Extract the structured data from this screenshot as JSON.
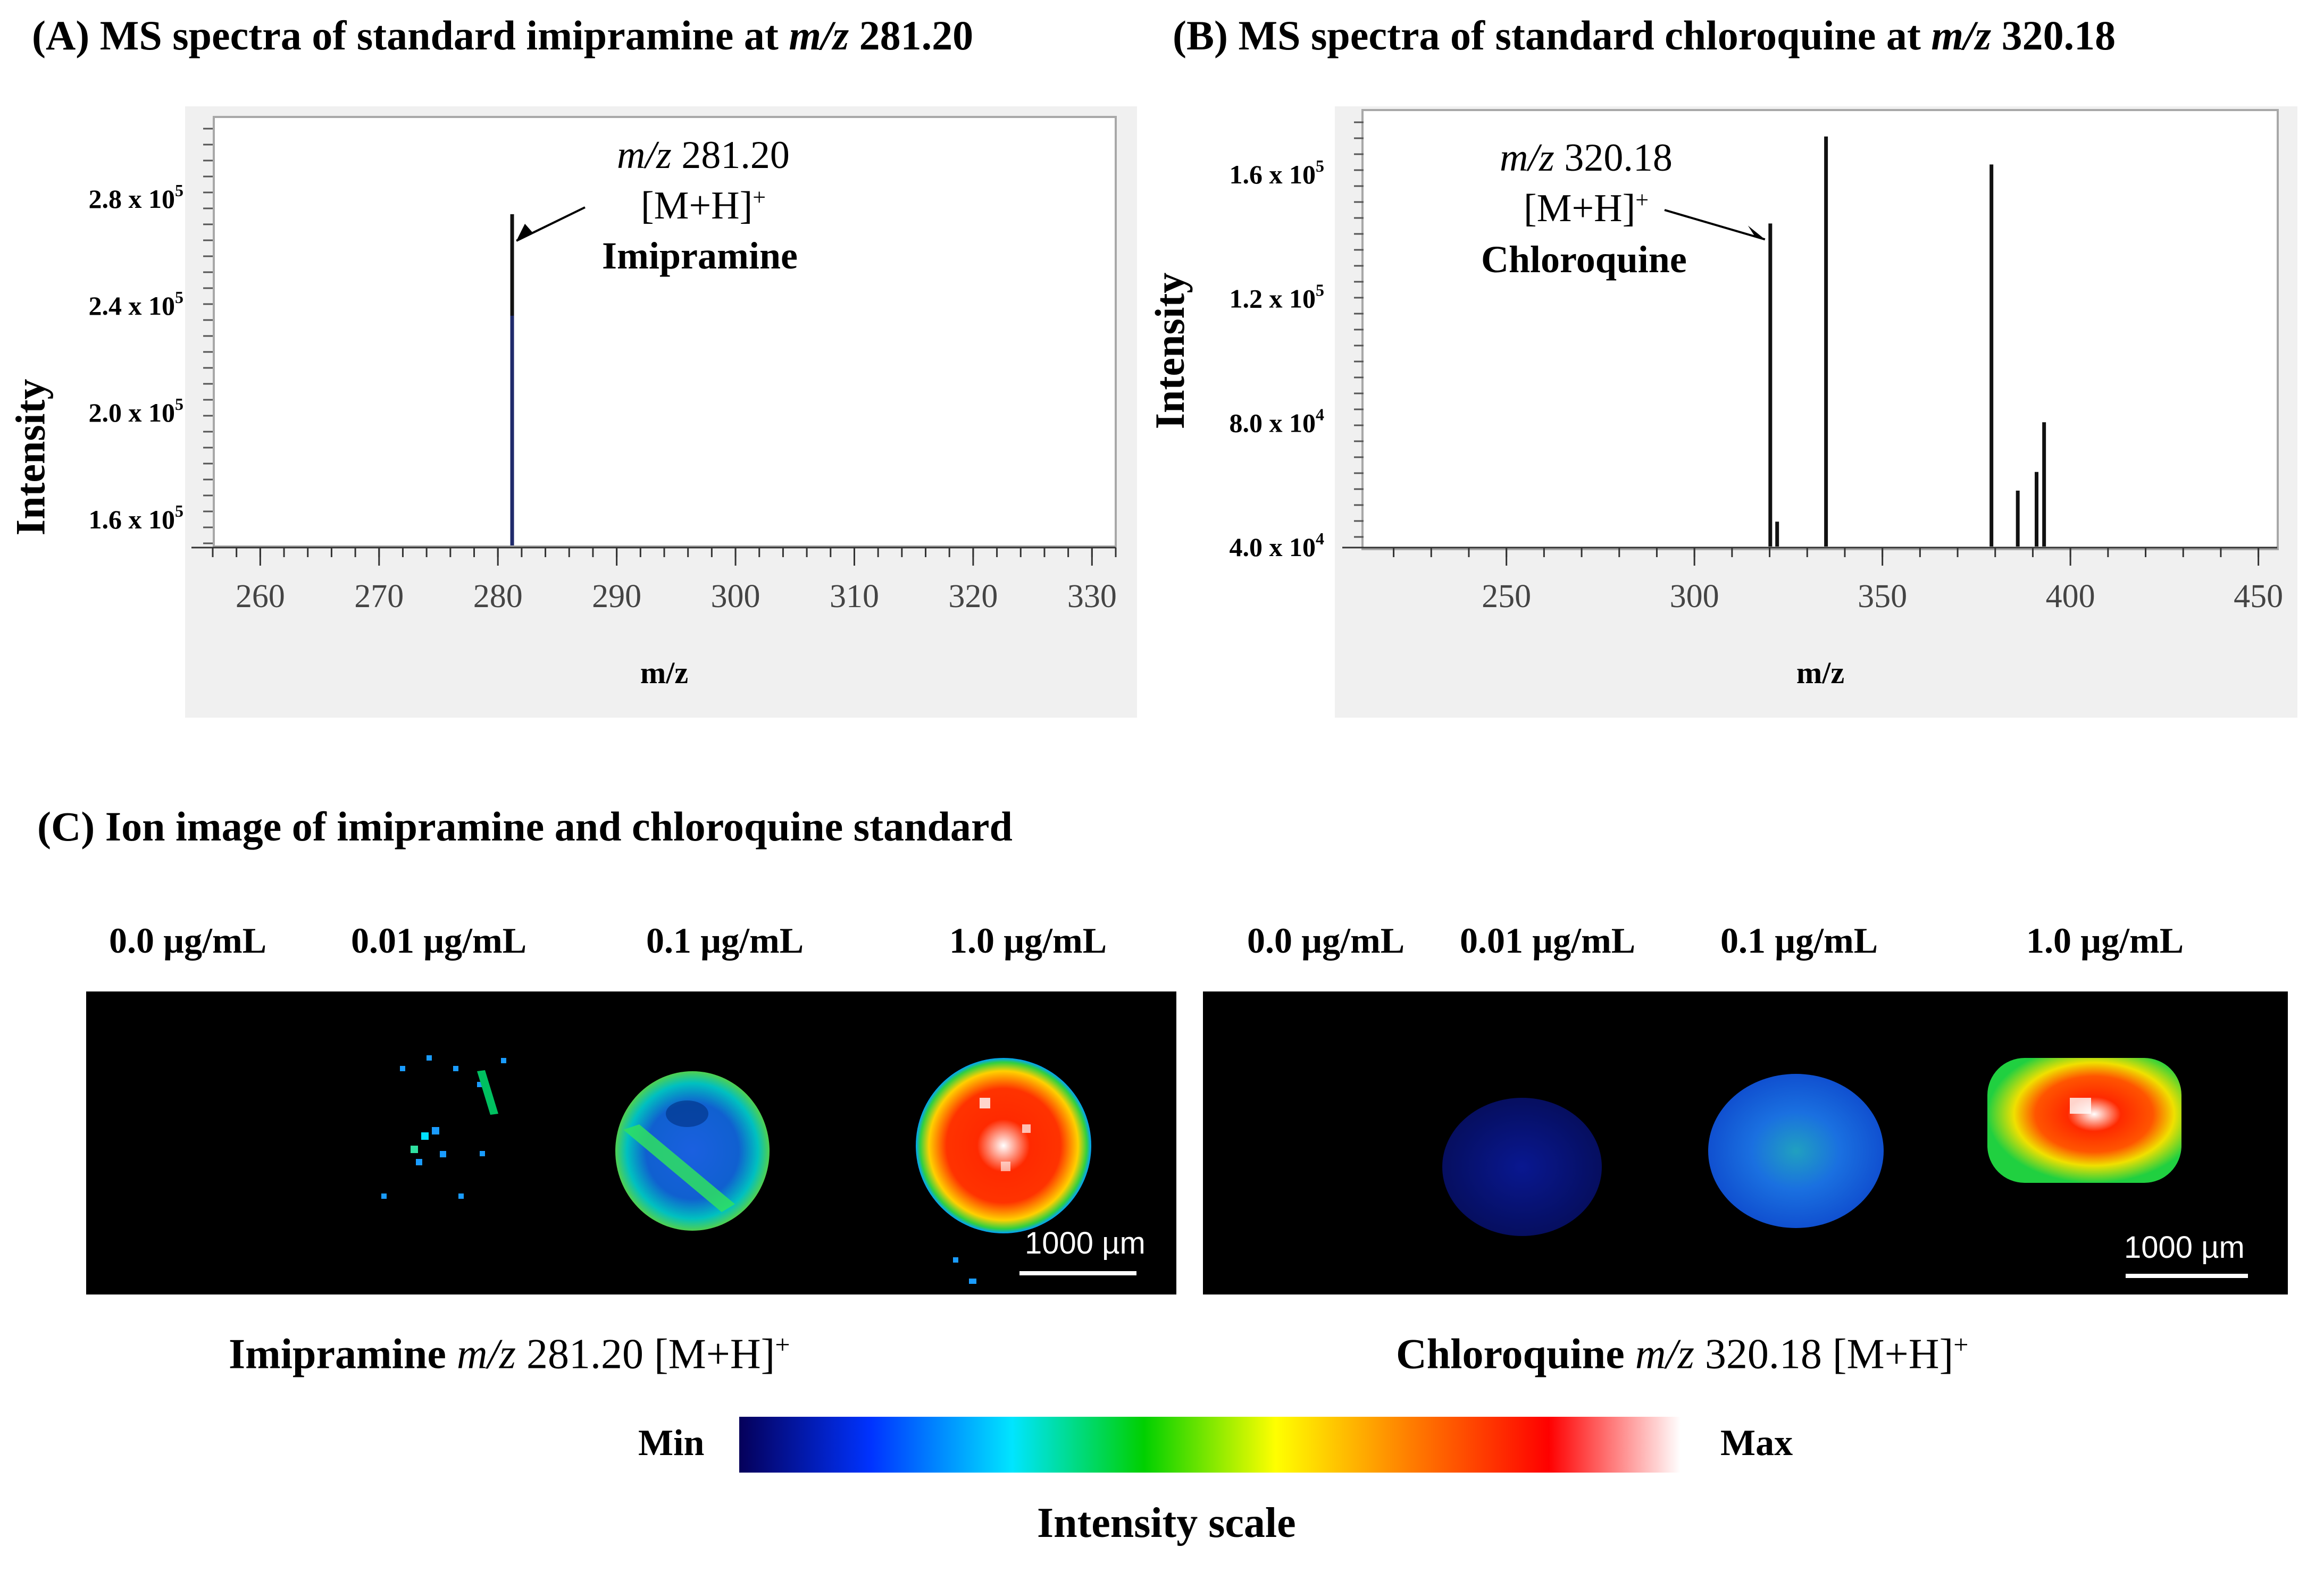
{
  "titles": {
    "A": {
      "prefix": "(A) MS spectra of  standard imipramine at ",
      "mz": "m/z",
      "value": "281.20"
    },
    "B": {
      "prefix": "(B) MS spectra of  standard chloroquine at ",
      "mz": "m/z",
      "value": "320.18"
    },
    "C": "(C) Ion image of imipramine and chloroquine standard"
  },
  "chart_data": [
    {
      "type": "bar",
      "id": "A",
      "xlabel": "m/z",
      "ylabel": "Intensity",
      "xlim": [
        256,
        332
      ],
      "ylim": [
        150000,
        310000
      ],
      "xticks": [
        260,
        270,
        280,
        290,
        300,
        310,
        320,
        330
      ],
      "yticks": [
        {
          "value": 160000,
          "mantissa": "1.6 x 10",
          "exp": "5"
        },
        {
          "value": 200000,
          "mantissa": "2.0 x 10",
          "exp": "5"
        },
        {
          "value": 240000,
          "mantissa": "2.4 x 10",
          "exp": "5"
        },
        {
          "value": 280000,
          "mantissa": "2.8 x 10",
          "exp": "5"
        }
      ],
      "peaks": [
        {
          "mz": 281.2,
          "intensity": 274000,
          "color": "#111111"
        },
        {
          "mz": 281.2,
          "intensity": 236000,
          "color": "#1f2a6b"
        }
      ],
      "annotation": {
        "mz_label": "m/z",
        "mz_value": "281.20",
        "ion": "[M+H]",
        "charge": "+",
        "compound": "Imipramine"
      }
    },
    {
      "type": "bar",
      "id": "B",
      "xlabel": "m/z",
      "ylabel": "Intensity",
      "xlim": [
        212,
        455
      ],
      "ylim": [
        40000,
        180000
      ],
      "xticks": [
        250,
        300,
        350,
        400,
        450
      ],
      "yticks": [
        {
          "value": 40000,
          "mantissa": "4.0 x 10",
          "exp": "4"
        },
        {
          "value": 80000,
          "mantissa": "8.0 x 10",
          "exp": "4"
        },
        {
          "value": 120000,
          "mantissa": "1.2 x 10",
          "exp": "5"
        },
        {
          "value": 160000,
          "mantissa": "1.6 x 10",
          "exp": "5"
        }
      ],
      "peaks": [
        {
          "mz": 320.18,
          "intensity": 144000,
          "color": "#111111"
        },
        {
          "mz": 322,
          "intensity": 48000,
          "color": "#111111"
        },
        {
          "mz": 335,
          "intensity": 172000,
          "color": "#111111"
        },
        {
          "mz": 379,
          "intensity": 163000,
          "color": "#111111"
        },
        {
          "mz": 386,
          "intensity": 58000,
          "color": "#111111"
        },
        {
          "mz": 391,
          "intensity": 64000,
          "color": "#111111"
        },
        {
          "mz": 393,
          "intensity": 80000,
          "color": "#111111"
        }
      ],
      "annotation": {
        "mz_label": "m/z",
        "mz_value": "320.18",
        "ion": "[M+H]",
        "charge": "+",
        "compound": "Chloroquine"
      }
    }
  ],
  "ion_images": {
    "concentrations": [
      "0.0 µg/mL",
      "0.01 µg/mL",
      "0.1 µg/mL",
      "1.0 µg/mL"
    ],
    "imipramine": {
      "name": "Imipramine",
      "mz_label": "m/z",
      "value": "281.20 [M+H]",
      "charge": "+"
    },
    "chloroquine": {
      "name": "Chloroquine",
      "mz_label": "m/z",
      "value": "320.18 [M+H]",
      "charge": "+"
    },
    "scale_bar": "1000 µm"
  },
  "colorbar": {
    "min": "Min",
    "max": "Max",
    "title": "Intensity scale",
    "colors": [
      "#05005a",
      "#0033ff",
      "#00e5ff",
      "#00d000",
      "#ffff00",
      "#ff8000",
      "#ff0000",
      "#ffffff"
    ]
  }
}
